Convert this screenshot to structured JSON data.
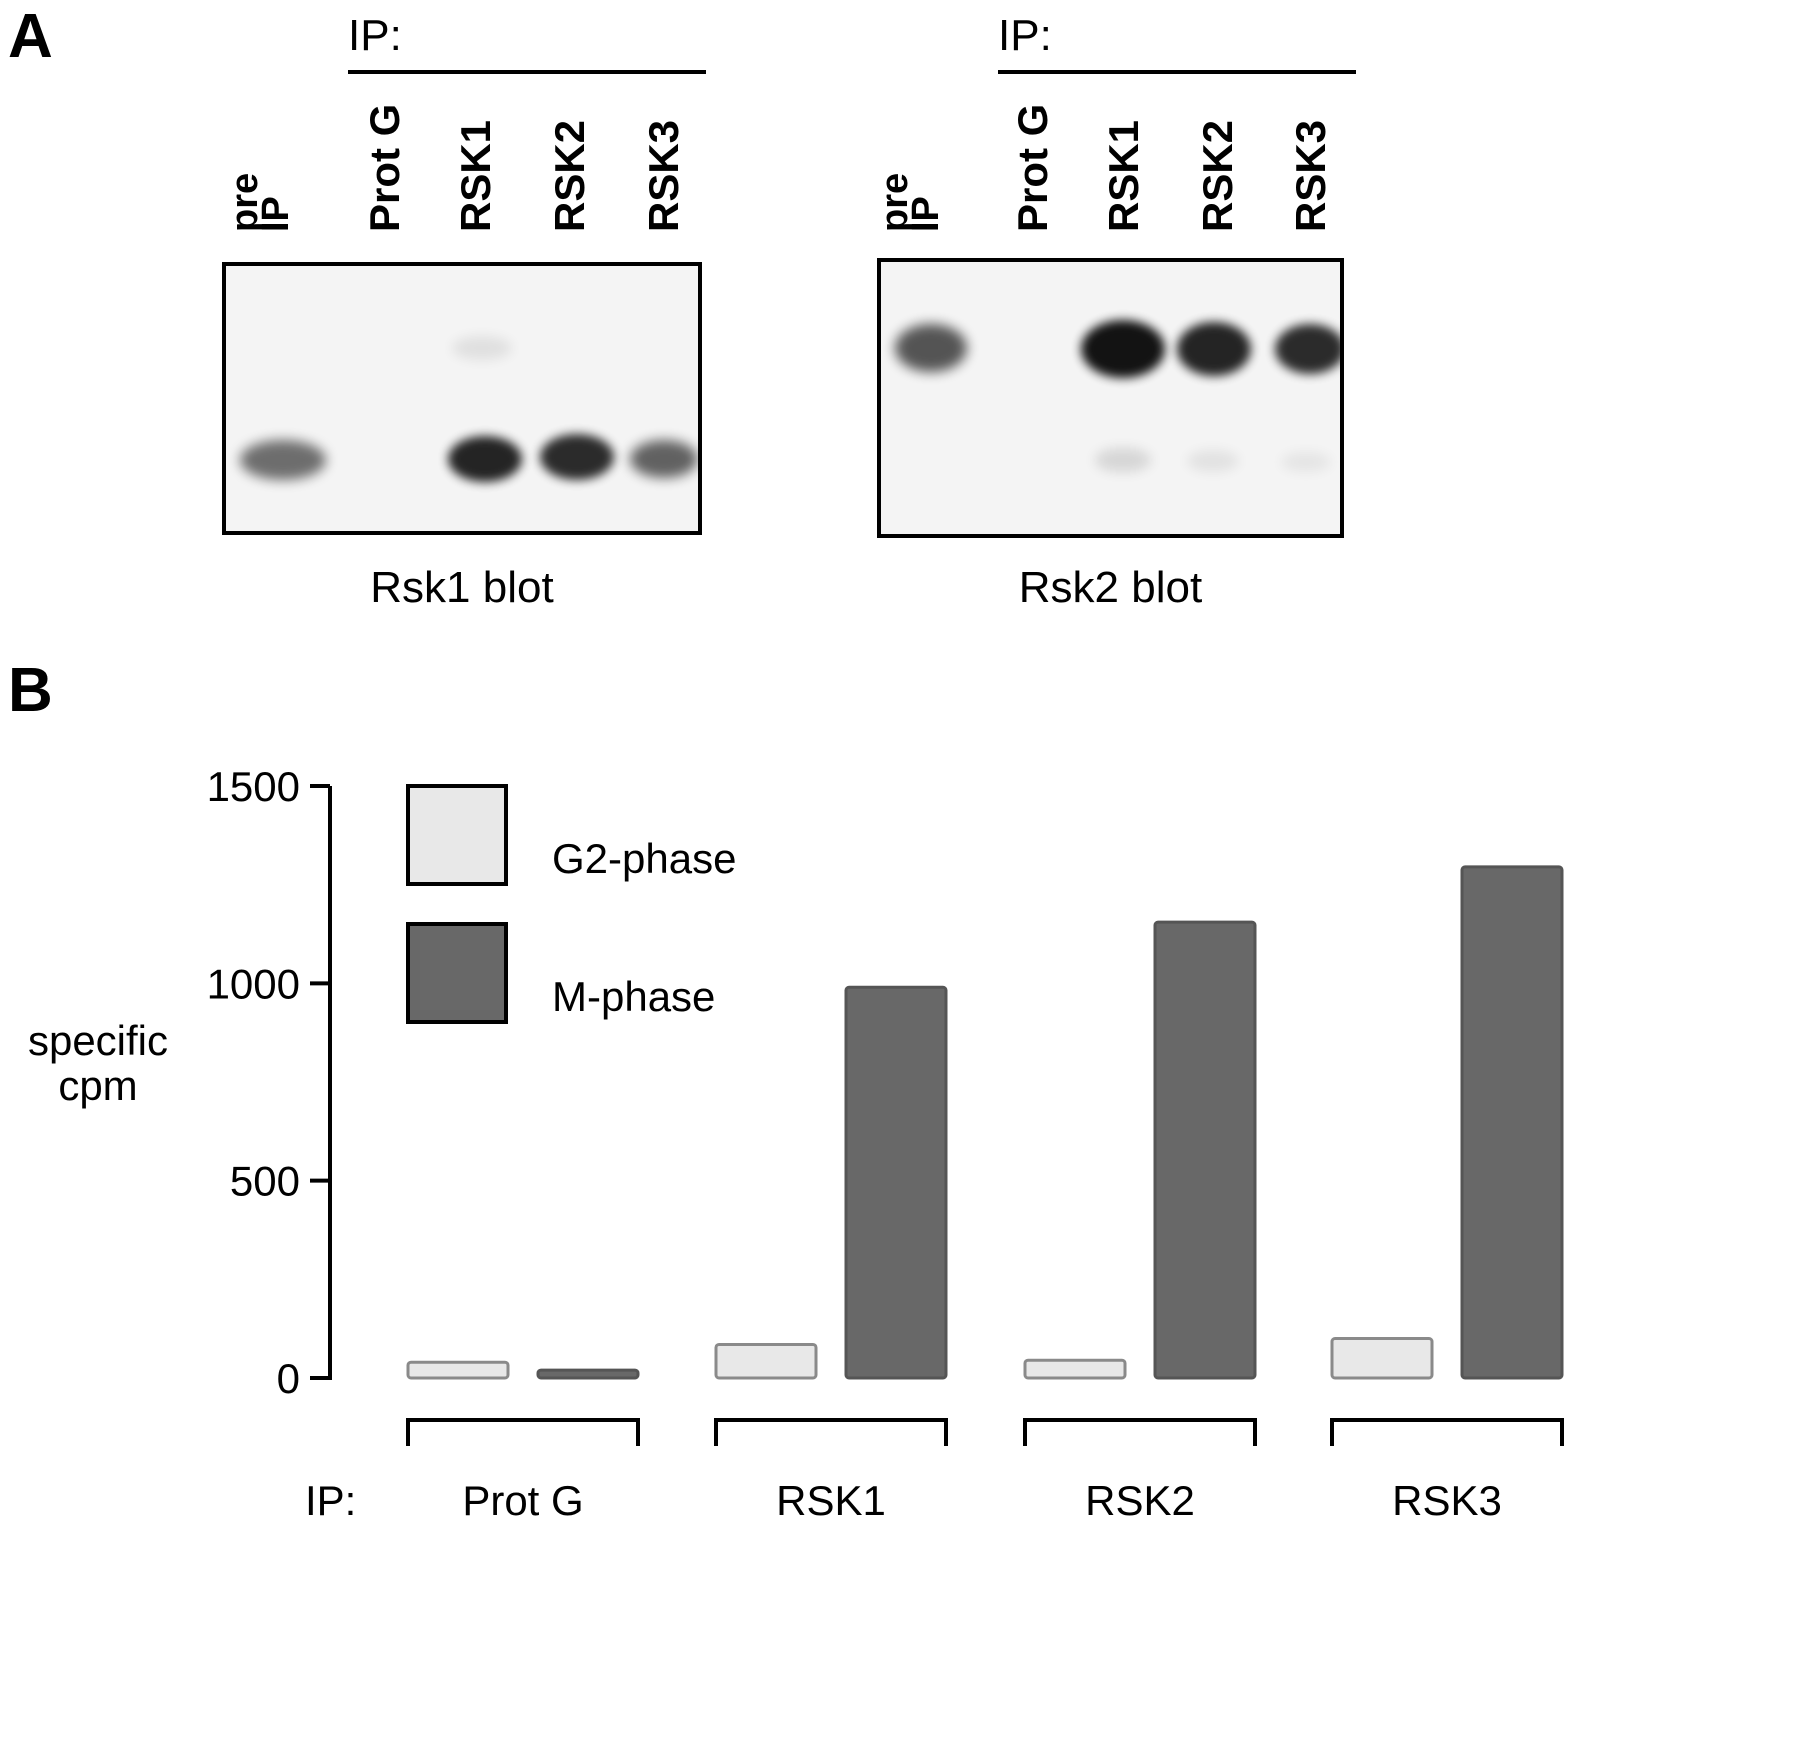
{
  "panels": {
    "a": {
      "letter": "A",
      "blots": [
        {
          "ip_label": "IP:",
          "lane_pre": "pre\nIP",
          "ip_lanes": [
            "Prot G",
            "RSK1",
            "RSK2",
            "RSK3"
          ],
          "caption": "Rsk1 blot"
        },
        {
          "ip_label": "IP:",
          "lane_pre": "pre\nIP",
          "ip_lanes": [
            "Prot G",
            "RSK1",
            "RSK2",
            "RSK3"
          ],
          "caption": "Rsk2 blot"
        }
      ]
    },
    "b": {
      "letter": "B"
    }
  },
  "chart_data": {
    "type": "bar",
    "categories": [
      "Prot G",
      "RSK1",
      "RSK2",
      "RSK3"
    ],
    "x_prefix": "IP:",
    "ylabel": "specific\ncpm",
    "ylim": [
      0,
      1500
    ],
    "yticks": [
      0,
      500,
      1000,
      1500
    ],
    "series": [
      {
        "name": "G2-phase",
        "color": "#e8e8e8",
        "values": [
          40,
          85,
          45,
          100
        ]
      },
      {
        "name": "M-phase",
        "color": "#686868",
        "values": [
          20,
          990,
          1155,
          1295
        ]
      }
    ],
    "legend_position": "top-left",
    "grid": false
  }
}
